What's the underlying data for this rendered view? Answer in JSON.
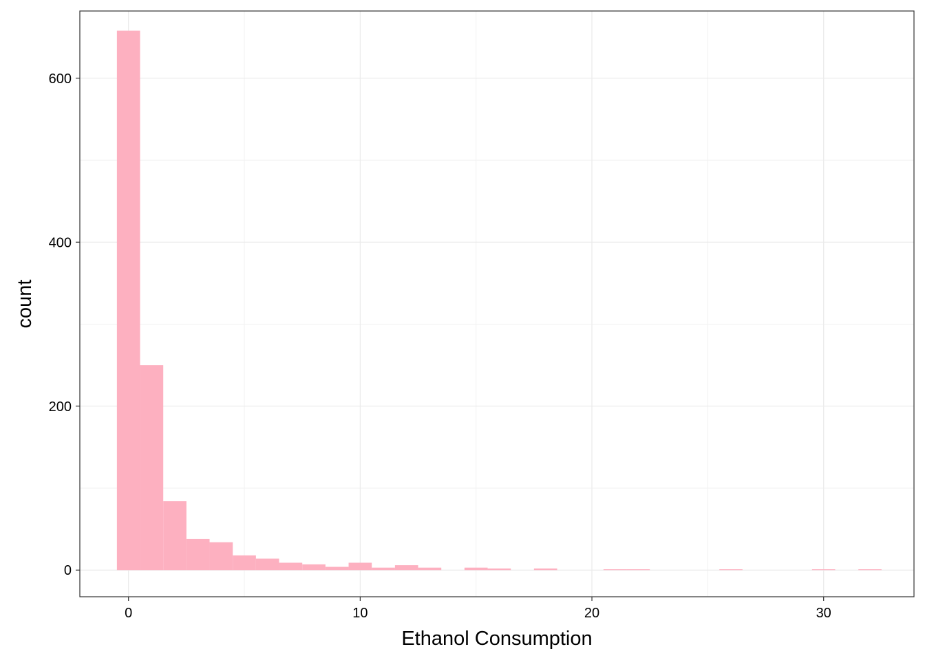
{
  "chart_data": {
    "type": "bar",
    "title": "",
    "xlabel": "Ethanol Consumption",
    "ylabel": "count",
    "xlim": [
      -2.1,
      33.9
    ],
    "ylim": [
      -32.5,
      682
    ],
    "x_ticks": [
      0,
      10,
      20,
      30
    ],
    "y_ticks": [
      0,
      200,
      400,
      600
    ],
    "x_minor_gridlines": [
      5,
      15,
      25
    ],
    "y_minor_gridlines": [
      100,
      300,
      500
    ],
    "bin_width": 1,
    "bin_centers": [
      0,
      1,
      2,
      3,
      4,
      5,
      6,
      7,
      8,
      9,
      10,
      11,
      12,
      13,
      14,
      15,
      16,
      17,
      18,
      19,
      20,
      21,
      22,
      23,
      24,
      25,
      26,
      27,
      28,
      29,
      30,
      31,
      32
    ],
    "values": [
      658,
      250,
      84,
      38,
      34,
      18,
      14,
      9,
      7,
      4,
      9,
      3,
      6,
      3,
      0,
      3,
      2,
      0,
      2,
      0,
      0,
      1,
      1,
      0,
      0,
      0,
      1,
      0,
      0,
      0,
      1,
      0,
      1
    ],
    "fill_color": "#FDB0C0",
    "grid": true,
    "theme": "bw",
    "legend": "none"
  }
}
